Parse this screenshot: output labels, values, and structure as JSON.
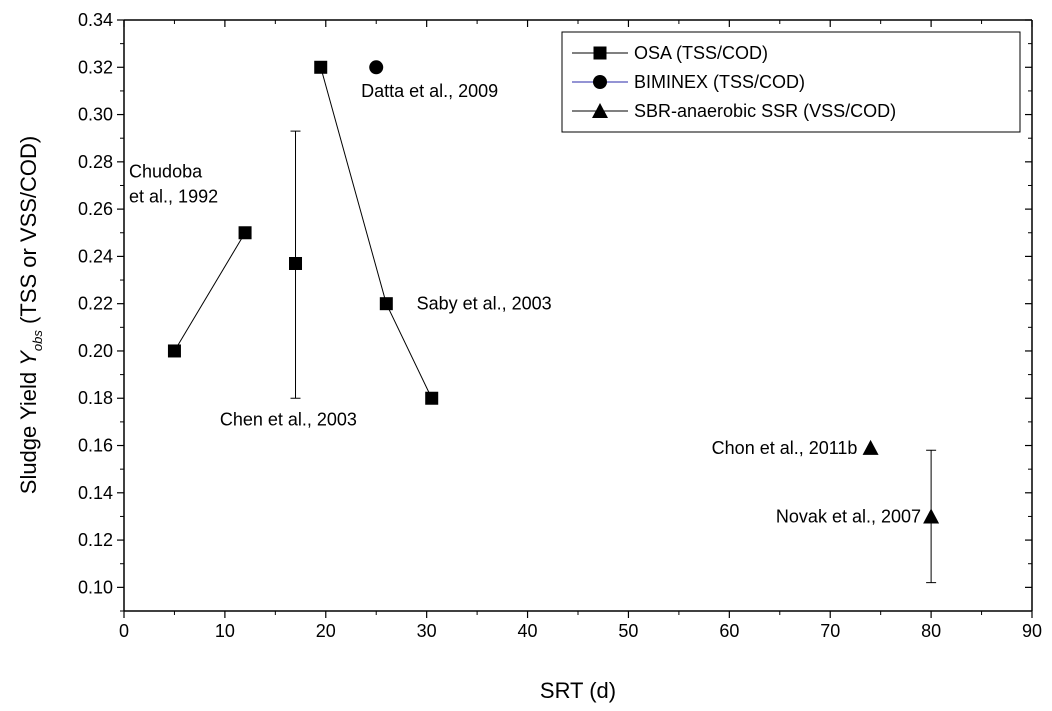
{
  "chart_data": {
    "type": "scatter",
    "xlabel": "SRT (d)",
    "ylabel": {
      "prefix": "Sludge Yield",
      "symbol": "Y",
      "subscript": "obs",
      "suffix": "(TSS or VSS/COD)"
    },
    "xlim": [
      0,
      90
    ],
    "ylim": [
      0.09,
      0.34
    ],
    "xticks": [
      0,
      10,
      20,
      30,
      40,
      50,
      60,
      70,
      80,
      90
    ],
    "xtick_labels": [
      "0",
      "10",
      "20",
      "30",
      "40",
      "50",
      "60",
      "70",
      "80",
      "90"
    ],
    "yticks": [
      0.1,
      0.12,
      0.14,
      0.16,
      0.18,
      0.2,
      0.22,
      0.24,
      0.26,
      0.28,
      0.3,
      0.32,
      0.34
    ],
    "ytick_labels": [
      "0.10",
      "0.12",
      "0.14",
      "0.16",
      "0.18",
      "0.20",
      "0.22",
      "0.24",
      "0.26",
      "0.28",
      "0.30",
      "0.32",
      "0.34"
    ],
    "grid": false,
    "legend_position": "top-right",
    "series": [
      {
        "name": "OSA (TSS/COD)",
        "marker": "square",
        "color": "#000000",
        "line_color": "#000000",
        "groups": [
          {
            "points": [
              {
                "x": 5,
                "y": 0.2
              },
              {
                "x": 12,
                "y": 0.25
              }
            ],
            "connected": true
          },
          {
            "points": [
              {
                "x": 17,
                "y": 0.237,
                "err_low": 0.18,
                "err_high": 0.293
              }
            ],
            "connected": false
          },
          {
            "points": [
              {
                "x": 19.5,
                "y": 0.32
              },
              {
                "x": 26,
                "y": 0.22
              },
              {
                "x": 30.5,
                "y": 0.18
              }
            ],
            "connected": true
          }
        ]
      },
      {
        "name": "BIMINEX (TSS/COD)",
        "marker": "circle",
        "color": "#000000",
        "line_color": "#2a2aa8",
        "groups": [
          {
            "points": [
              {
                "x": 25,
                "y": 0.32
              }
            ],
            "connected": false
          }
        ]
      },
      {
        "name": "SBR-anaerobic SSR (VSS/COD)",
        "marker": "triangle",
        "color": "#000000",
        "line_color": "#000000",
        "groups": [
          {
            "points": [
              {
                "x": 74,
                "y": 0.159
              }
            ],
            "connected": false
          },
          {
            "points": [
              {
                "x": 80,
                "y": 0.13,
                "err_low": 0.102,
                "err_high": 0.158
              }
            ],
            "connected": false
          }
        ]
      }
    ],
    "annotations": [
      {
        "id": "chudoba",
        "lines": [
          "Chudoba",
          "et al., 1992"
        ],
        "x": 0.5,
        "y": 0.268,
        "anchor": "start"
      },
      {
        "id": "chen",
        "lines": [
          "Chen et al., 2003"
        ],
        "x": 9.5,
        "y": 0.171,
        "anchor": "start"
      },
      {
        "id": "datta",
        "lines": [
          "Datta et al., 2009"
        ],
        "x": 23.5,
        "y": 0.31,
        "anchor": "start"
      },
      {
        "id": "saby",
        "lines": [
          "Saby et al., 2003"
        ],
        "x": 29,
        "y": 0.22,
        "anchor": "start"
      },
      {
        "id": "chon",
        "lines": [
          "Chon et al., 2011b"
        ],
        "x": 72.7,
        "y": 0.159,
        "anchor": "end"
      },
      {
        "id": "novak",
        "lines": [
          "Novak et al., 2007"
        ],
        "x": 79,
        "y": 0.13,
        "anchor": "end"
      }
    ]
  }
}
